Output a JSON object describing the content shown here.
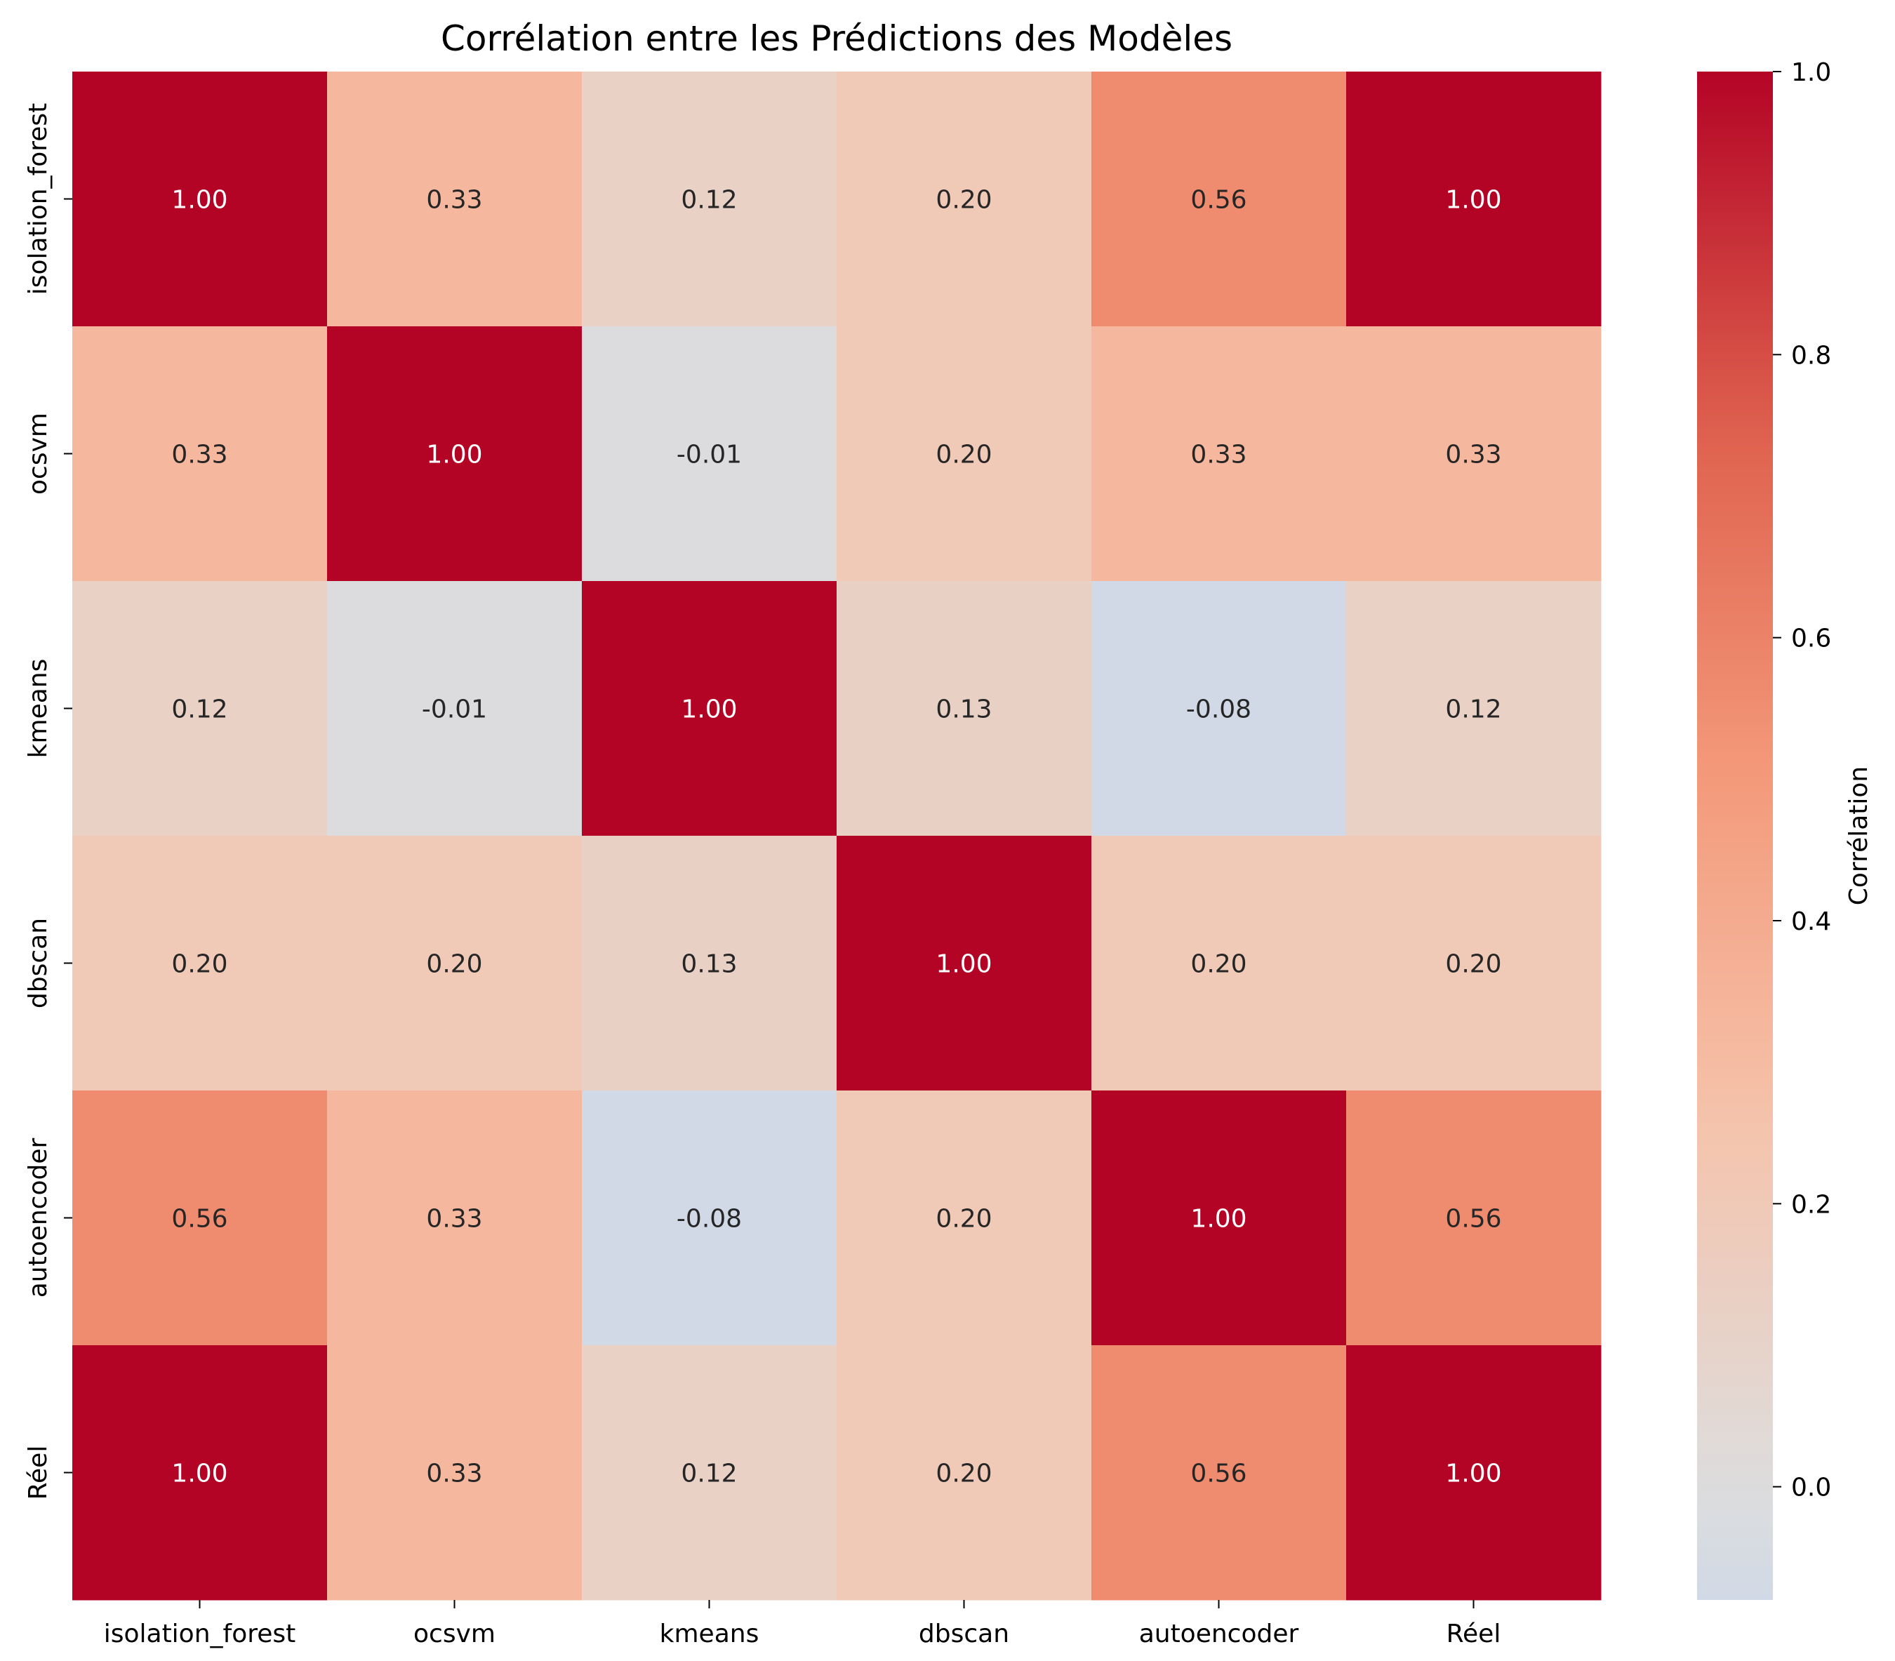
{
  "chart_data": {
    "type": "heatmap",
    "title": "Corrélation entre les Prédictions des Modèles",
    "x_labels": [
      "isolation_forest",
      "ocsvm",
      "kmeans",
      "dbscan",
      "autoencoder",
      "Réel"
    ],
    "y_labels": [
      "isolation_forest",
      "ocsvm",
      "kmeans",
      "dbscan",
      "autoencoder",
      "Réel"
    ],
    "values": [
      [
        1.0,
        0.33,
        0.12,
        0.2,
        0.56,
        1.0
      ],
      [
        0.33,
        1.0,
        -0.01,
        0.2,
        0.33,
        0.33
      ],
      [
        0.12,
        -0.01,
        1.0,
        0.13,
        -0.08,
        0.12
      ],
      [
        0.2,
        0.2,
        0.13,
        1.0,
        0.2,
        0.2
      ],
      [
        0.56,
        0.33,
        -0.08,
        0.2,
        1.0,
        0.56
      ],
      [
        1.0,
        0.33,
        0.12,
        0.2,
        0.56,
        1.0
      ]
    ],
    "value_format": "2 decimals",
    "colormap": "coolwarm",
    "center": 0.0,
    "vmin": -0.08,
    "vmax": 1.0,
    "colorbar": {
      "label": "Corrélation",
      "ticks": [
        0.0,
        0.2,
        0.4,
        0.6,
        0.8,
        1.0
      ],
      "tick_labels": [
        "0.0",
        "0.2",
        "0.4",
        "0.6",
        "0.8",
        "1.0"
      ]
    }
  }
}
